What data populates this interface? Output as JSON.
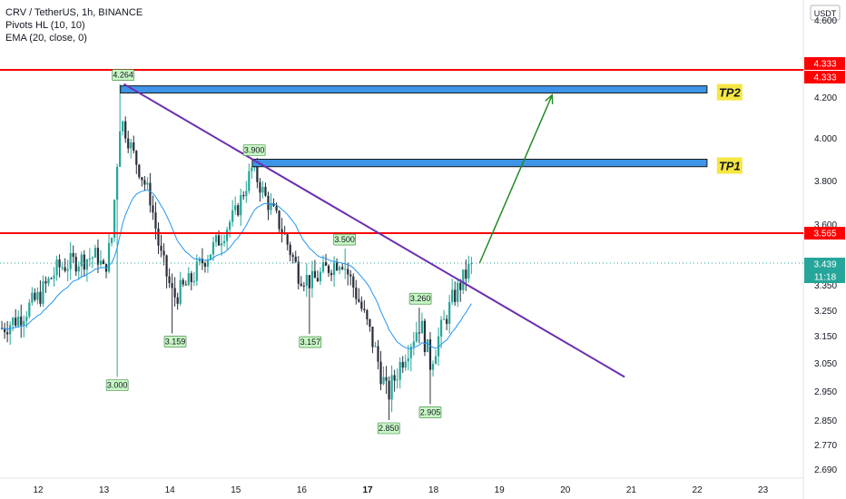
{
  "legend": {
    "symbol_line": "CRV / TetherUS, 1h, BINANCE",
    "indicator_1": "Pivots HL (10, 10)",
    "indicator_2": "EMA (20, close, 0)"
  },
  "chart_data": {
    "type": "candlestick",
    "currency": "USDT",
    "x_ticks": [
      "12",
      "13",
      "14",
      "15",
      "16",
      "17",
      "18",
      "19",
      "20",
      "21",
      "22",
      "23"
    ],
    "x_ticks_bold": [
      "17"
    ],
    "y_ticks": [
      "4.600",
      "4.200",
      "4.000",
      "3.800",
      "3.600",
      "3.350",
      "3.250",
      "3.150",
      "3.050",
      "2.950",
      "2.850",
      "2.770",
      "2.690"
    ],
    "price_labels": [
      {
        "value": "4.333",
        "color": "#ff0000"
      },
      {
        "value": "4.333",
        "color": "#ff0000"
      },
      {
        "value": "3.565",
        "color": "#ff0000"
      },
      {
        "value": "3.439",
        "color": "#26a69a"
      },
      {
        "value": "11:18",
        "color": "#26a69a"
      }
    ],
    "pivot_labels": [
      "4.264",
      "3.900",
      "3.500",
      "3.260",
      "3.159",
      "3.157",
      "3.000",
      "2.905",
      "2.850"
    ],
    "horizontal_levels": [
      4.333,
      3.565
    ],
    "last_price": 3.439,
    "target_zones": [
      {
        "label": "TP2",
        "from": 4.22,
        "to": 4.255
      },
      {
        "label": "TP1",
        "from": 3.865,
        "to": 3.9
      }
    ],
    "trendline": {
      "from": {
        "x": "13.3",
        "y": 4.264
      },
      "to": {
        "x": "20.9",
        "y": 3.0
      }
    },
    "projection_arrow": {
      "from": {
        "x": "18.7",
        "y": 3.44
      },
      "to": {
        "x": "19.8",
        "y": 4.21
      }
    },
    "series": [
      {
        "name": "CRV / TetherUS",
        "kind": "candles"
      },
      {
        "name": "EMA (20, close, 0)",
        "kind": "line",
        "color": "#2196f3"
      }
    ],
    "colors": {
      "up": "#26a69a",
      "down": "#2a2e39",
      "ema": "#2196f3",
      "level": "#ff0000",
      "trendline": "#6a2fb0",
      "arrow": "#228b22",
      "zone": "#3d94e8",
      "tp_label": "#f5e642"
    }
  }
}
